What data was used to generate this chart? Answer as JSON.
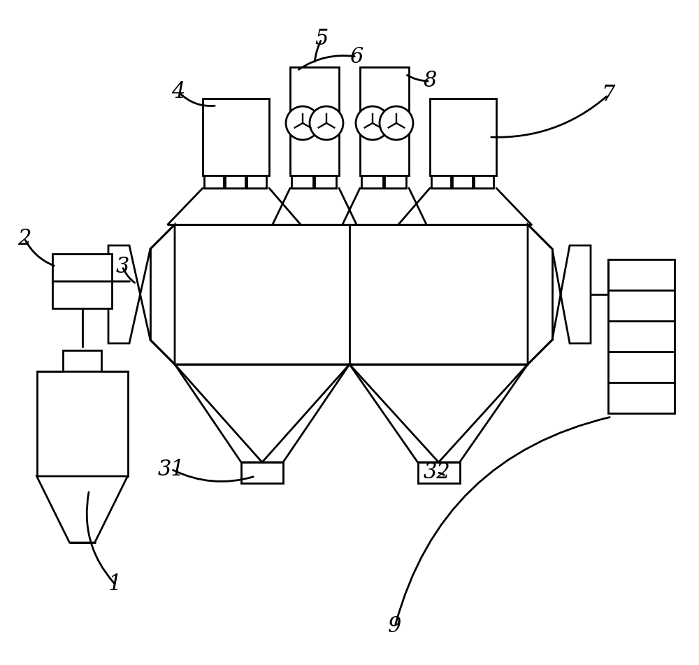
{
  "bg_color": "#ffffff",
  "line_color": "#000000",
  "line_width": 2.0,
  "label_fontsize": 22,
  "figsize": [
    10.0,
    9.51
  ],
  "dpi": 100
}
